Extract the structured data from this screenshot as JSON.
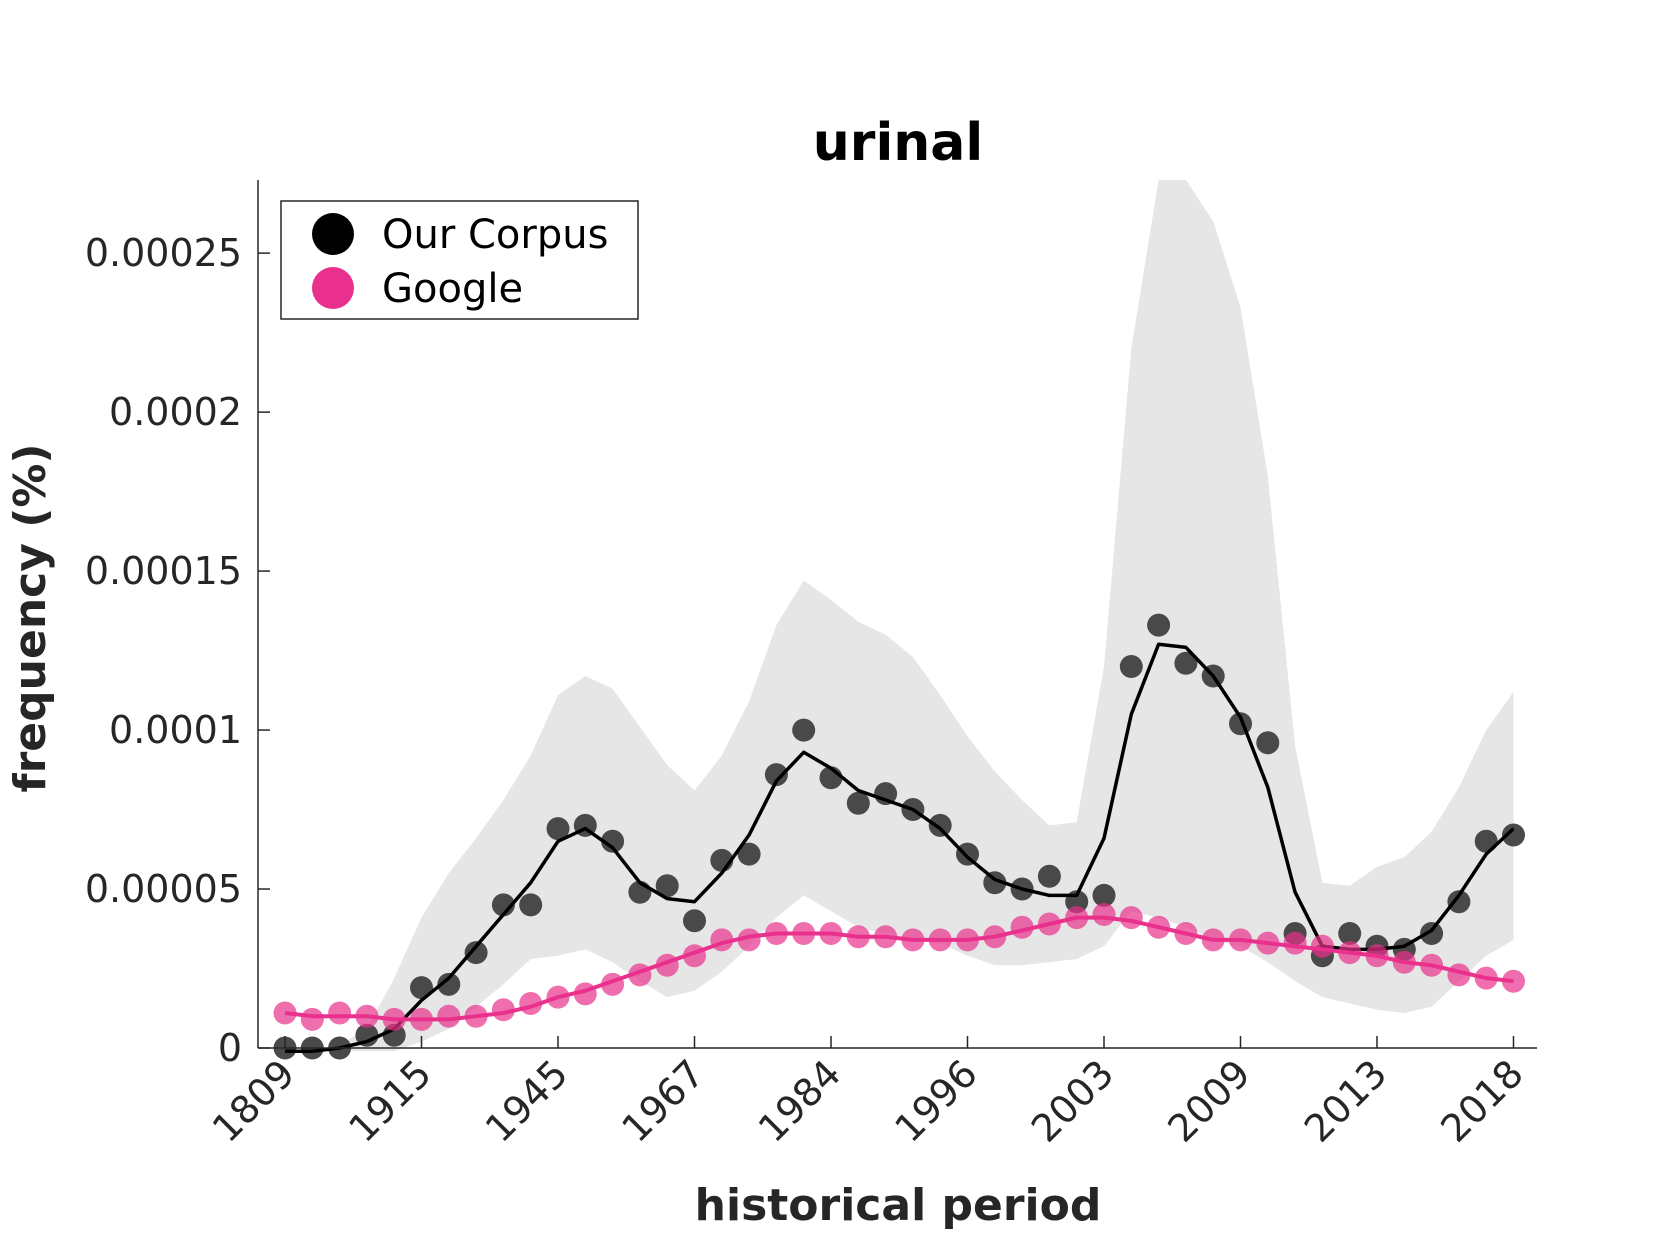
{
  "chart_data": {
    "type": "line",
    "title": "urinal",
    "xlabel": "historical period",
    "ylabel": "frequency (%)",
    "ylim": [
      0,
      0.000273
    ],
    "y_ticks": [
      0,
      5e-05,
      0.0001,
      0.00015,
      0.0002,
      0.00025
    ],
    "y_tick_labels": [
      "0",
      "0.00005",
      "0.0001",
      "0.00015",
      "0.0002",
      "0.00025"
    ],
    "x_tick_labels": [
      "1809",
      "1915",
      "1945",
      "1967",
      "1984",
      "1996",
      "2003",
      "2009",
      "2013",
      "2018"
    ],
    "x_tick_period_index": [
      1,
      6,
      11,
      16,
      21,
      26,
      31,
      36,
      41,
      46
    ],
    "n_periods": 46,
    "legend": {
      "position": "top-left",
      "entries": [
        "Our Corpus",
        "Google"
      ]
    },
    "colors": {
      "corpus": "#000000",
      "corpus_points": "#404040",
      "google": "#e8308c",
      "band": "#e6e6e6"
    },
    "series": [
      {
        "name": "Our Corpus",
        "points": [
          0,
          0,
          0,
          4e-06,
          4e-06,
          1.9e-05,
          2e-05,
          3e-05,
          4.5e-05,
          4.5e-05,
          6.9e-05,
          7e-05,
          6.5e-05,
          4.9e-05,
          5.1e-05,
          4e-05,
          5.9e-05,
          6.1e-05,
          8.6e-05,
          0.0001,
          8.5e-05,
          7.7e-05,
          8e-05,
          7.5e-05,
          7e-05,
          6.1e-05,
          5.2e-05,
          5e-05,
          5.4e-05,
          4.6e-05,
          4.8e-05,
          0.00012,
          0.000133,
          0.000121,
          0.000117,
          0.000102,
          9.6e-05,
          3.6e-05,
          2.9e-05,
          3.6e-05,
          3.2e-05,
          3.1e-05,
          3.6e-05,
          4.6e-05,
          6.5e-05,
          6.7e-05
        ],
        "smooth": [
          -1e-06,
          -1e-06,
          0,
          2e-06,
          6e-06,
          1.5e-05,
          2.2e-05,
          3.2e-05,
          4.2e-05,
          5.2e-05,
          6.5e-05,
          6.9e-05,
          6.3e-05,
          5.2e-05,
          4.7e-05,
          4.6e-05,
          5.5e-05,
          6.7e-05,
          8.4e-05,
          9.3e-05,
          8.8e-05,
          8.1e-05,
          7.8e-05,
          7.5e-05,
          6.9e-05,
          6e-05,
          5.3e-05,
          5e-05,
          4.8e-05,
          4.8e-05,
          6.6e-05,
          0.000105,
          0.000127,
          0.000126,
          0.000117,
          0.000104,
          8.2e-05,
          4.9e-05,
          3.2e-05,
          3.1e-05,
          3.1e-05,
          3.2e-05,
          3.7e-05,
          4.8e-05,
          6.1e-05,
          6.9e-05
        ],
        "band_upper": [
          -1e-06,
          -1e-06,
          1e-06,
          6e-06,
          2.2e-05,
          4.1e-05,
          5.5e-05,
          6.6e-05,
          7.8e-05,
          9.2e-05,
          0.000111,
          0.000117,
          0.000113,
          0.000101,
          8.9e-05,
          8.1e-05,
          9.2e-05,
          0.000109,
          0.000133,
          0.000147,
          0.000141,
          0.000134,
          0.00013,
          0.000123,
          0.000111,
          9.8e-05,
          8.7e-05,
          7.8e-05,
          7e-05,
          7.1e-05,
          0.00012,
          0.00022,
          0.000273,
          0.000273,
          0.00026,
          0.000233,
          0.00018,
          9.5e-05,
          5.2e-05,
          5.1e-05,
          5.7e-05,
          6e-05,
          6.8e-05,
          8.2e-05,
          0.0001,
          0.000112
        ],
        "band_lower": [
          -1e-06,
          -1e-06,
          -1e-06,
          -1e-06,
          -1e-06,
          2e-06,
          6e-06,
          1.3e-05,
          2e-05,
          2.8e-05,
          2.9e-05,
          3.1e-05,
          2.7e-05,
          2.1e-05,
          1.6e-05,
          1.8e-05,
          2.4e-05,
          3.2e-05,
          4.1e-05,
          4.8e-05,
          4.3e-05,
          3.8e-05,
          3.6e-05,
          3.4e-05,
          3.3e-05,
          2.9e-05,
          2.6e-05,
          2.6e-05,
          2.7e-05,
          2.8e-05,
          3.2e-05,
          4.3e-05,
          4.1e-05,
          3.8e-05,
          3.4e-05,
          3.2e-05,
          2.7e-05,
          2.1e-05,
          1.6e-05,
          1.4e-05,
          1.2e-05,
          1.1e-05,
          1.3e-05,
          2.1e-05,
          2.9e-05,
          3.4e-05
        ]
      },
      {
        "name": "Google",
        "points": [
          1.1e-05,
          9e-06,
          1.1e-05,
          1e-05,
          9e-06,
          9e-06,
          1e-05,
          1e-05,
          1.2e-05,
          1.4e-05,
          1.6e-05,
          1.7e-05,
          2e-05,
          2.3e-05,
          2.6e-05,
          2.9e-05,
          3.4e-05,
          3.4e-05,
          3.6e-05,
          3.6e-05,
          3.6e-05,
          3.5e-05,
          3.5e-05,
          3.4e-05,
          3.4e-05,
          3.4e-05,
          3.5e-05,
          3.8e-05,
          3.9e-05,
          4.1e-05,
          4.2e-05,
          4.1e-05,
          3.8e-05,
          3.6e-05,
          3.4e-05,
          3.4e-05,
          3.3e-05,
          3.3e-05,
          3.2e-05,
          3e-05,
          2.9e-05,
          2.7e-05,
          2.6e-05,
          2.3e-05,
          2.2e-05,
          2.1e-05
        ],
        "smooth": [
          1.1e-05,
          1e-05,
          1e-05,
          1e-05,
          9e-06,
          9e-06,
          9e-06,
          1e-05,
          1.1e-05,
          1.3e-05,
          1.6e-05,
          1.8e-05,
          2.1e-05,
          2.4e-05,
          2.7e-05,
          3e-05,
          3.3e-05,
          3.5e-05,
          3.6e-05,
          3.6e-05,
          3.6e-05,
          3.5e-05,
          3.5e-05,
          3.4e-05,
          3.4e-05,
          3.4e-05,
          3.5e-05,
          3.7e-05,
          3.9e-05,
          4.1e-05,
          4.1e-05,
          4e-05,
          3.8e-05,
          3.6e-05,
          3.4e-05,
          3.4e-05,
          3.3e-05,
          3.2e-05,
          3.1e-05,
          3e-05,
          2.9e-05,
          2.7e-05,
          2.6e-05,
          2.4e-05,
          2.2e-05,
          2.1e-05
        ]
      }
    ]
  }
}
